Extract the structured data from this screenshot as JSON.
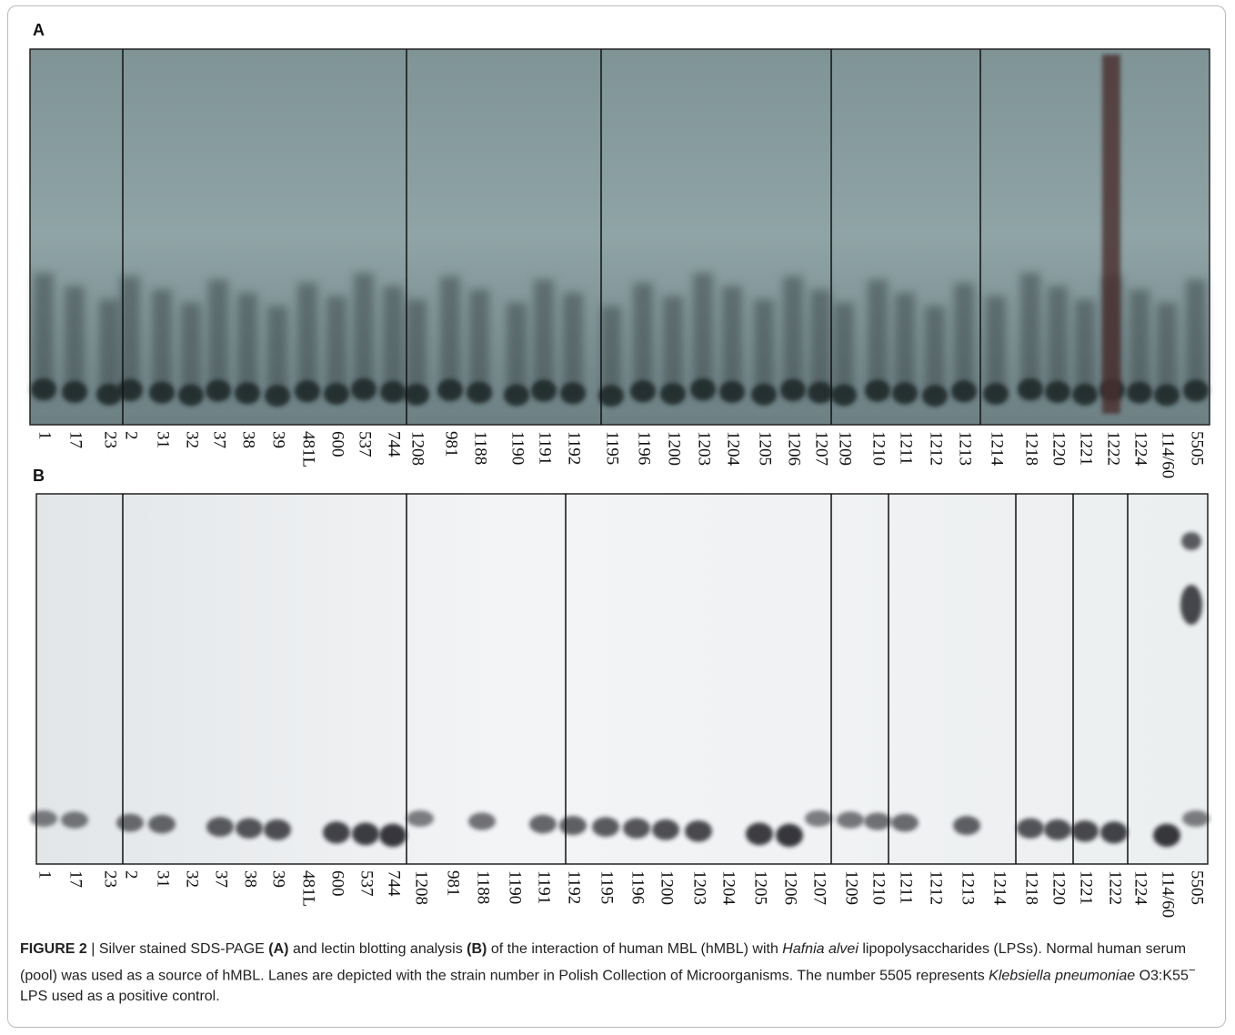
{
  "figure": {
    "panel_a": {
      "label": "A",
      "lanes": [
        "1",
        "17",
        "23",
        "2",
        "31",
        "32",
        "37",
        "38",
        "39",
        "481L",
        "600",
        "537",
        "744",
        "1208",
        "981",
        "1188",
        "1190",
        "1191",
        "1192",
        "1195",
        "1196",
        "1200",
        "1203",
        "1204",
        "1205",
        "1206",
        "1207",
        "1209",
        "1210",
        "1211",
        "1212",
        "1213",
        "1214",
        "1218",
        "1220",
        "1221",
        "1222",
        "1224",
        "114/60",
        "5505"
      ]
    },
    "panel_b": {
      "label": "B",
      "lanes": [
        "1",
        "17",
        "23",
        "2",
        "31",
        "32",
        "37",
        "38",
        "39",
        "481L",
        "600",
        "537",
        "744",
        "1208",
        "981",
        "1188",
        "1190",
        "1191",
        "1192",
        "1195",
        "1196",
        "1200",
        "1203",
        "1204",
        "1205",
        "1206",
        "1207",
        "1209",
        "1210",
        "1211",
        "1212",
        "1213",
        "1214",
        "1218",
        "1220",
        "1221",
        "1222",
        "1224",
        "114/60",
        "5505"
      ]
    },
    "caption": [
      "FIGURE 2",
      " | Silver stained SDS-PAGE ",
      "(A)",
      " and lectin blotting analysis ",
      "(B)",
      " of the interaction of human MBL (hMBL) with ",
      "Hafnia alvei",
      " lipopolysaccharides (LPSs). Normal human serum (pool) was used as a source of hMBL. Lanes are depicted with the strain number in Polish Collection of Microorganisms. The number 5505 represents ",
      "Klebsiella pneumoniae",
      " O3:K55",
      "−",
      " LPS used as a positive control."
    ]
  }
}
